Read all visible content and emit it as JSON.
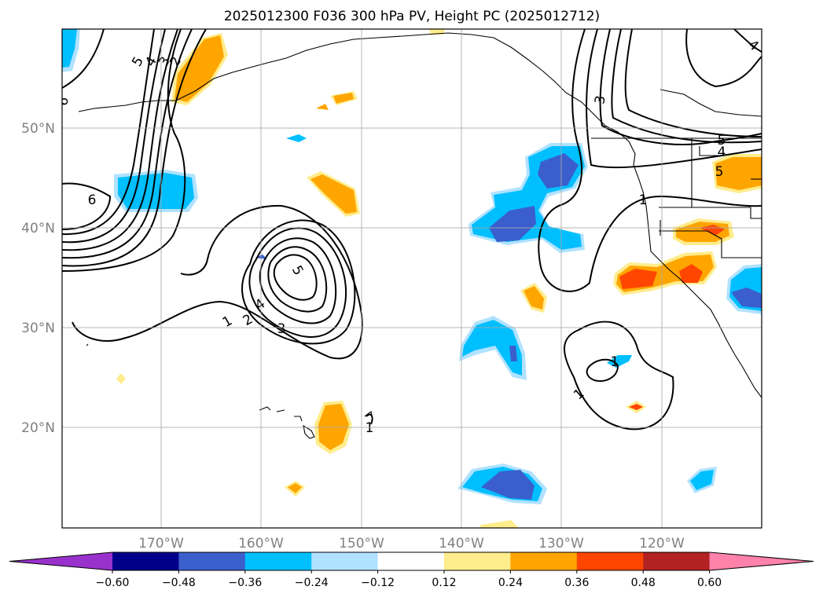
{
  "title": "2025012300 F036 300 hPa PV, Height PC (2025012712)",
  "map": {
    "lon_labels": [
      "170°W",
      "160°W",
      "150°W",
      "140°W",
      "130°W",
      "120°W"
    ],
    "lat_labels": [
      "50°N",
      "40°N",
      "30°N",
      "20°N"
    ],
    "gridlines": true
  },
  "colorbar": {
    "extend": "both",
    "colors": [
      "#9932cc",
      "#00008b",
      "#3a5fcd",
      "#00bfff",
      "#b0e2ff",
      "#ffffff",
      "#ffec8b",
      "#ffa500",
      "#ff4500",
      "#b22222",
      "#ff82ab"
    ],
    "labels": [
      "−0.60",
      "−0.48",
      "−0.36",
      "−0.24",
      "−0.12",
      "0.12",
      "0.24",
      "0.36",
      "0.48",
      "0.60"
    ]
  },
  "contour_labels": [
    "5",
    "4",
    "3",
    "2",
    "6",
    "6",
    "1",
    "2",
    "3",
    "4",
    "5",
    "1",
    "3",
    "5",
    "4",
    "5",
    "1",
    "1",
    "1",
    "1",
    "4"
  ]
}
